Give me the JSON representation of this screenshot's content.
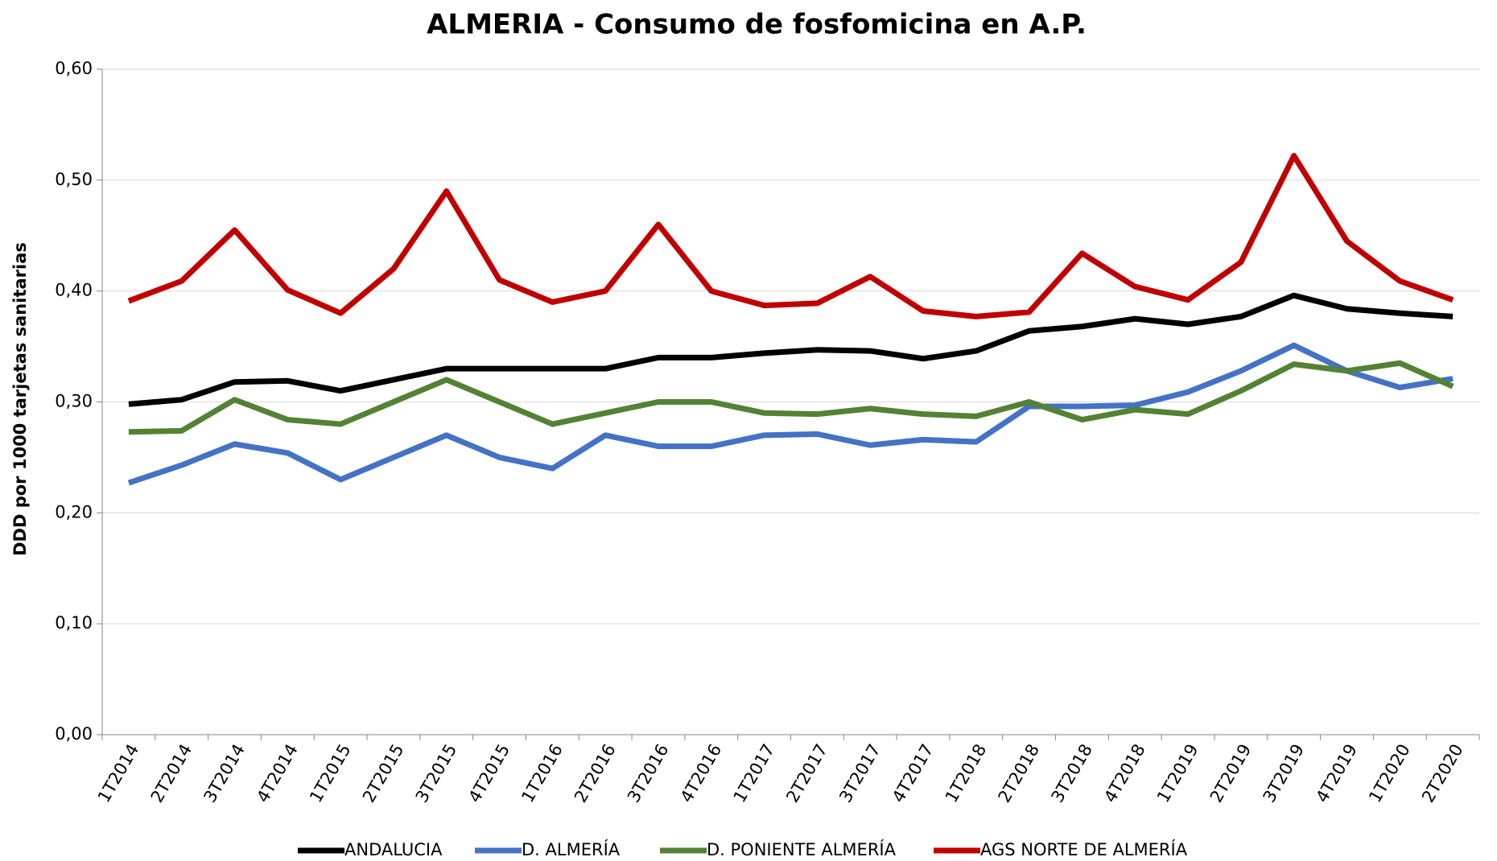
{
  "chart_data": {
    "type": "line",
    "title": "ALMERIA - Consumo de fosfomicina en A.P.",
    "y_label": "DDD por 1000 tarjetas sanitarias",
    "categories": [
      "1T2014",
      "2T2014",
      "3T2014",
      "4T2014",
      "1T2015",
      "2T2015",
      "3T2015",
      "4T2015",
      "1T2016",
      "2T2016",
      "3T2016",
      "4T2016",
      "1T2017",
      "2T2017",
      "3T2017",
      "4T2017",
      "1T2018",
      "2T2018",
      "3T2018",
      "4T2018",
      "1T2019",
      "2T2019",
      "3T2019",
      "4T2019",
      "1T2020",
      "2T2020"
    ],
    "series": [
      {
        "name": "ANDALUCIA",
        "color": "#000000",
        "values": [
          0.298,
          0.302,
          0.318,
          0.319,
          0.31,
          0.32,
          0.33,
          0.33,
          0.33,
          0.33,
          0.34,
          0.34,
          0.344,
          0.347,
          0.346,
          0.339,
          0.346,
          0.364,
          0.368,
          0.375,
          0.37,
          0.377,
          0.396,
          0.384,
          0.38,
          0.377
        ]
      },
      {
        "name": "D. ALMERÍA",
        "color": "#4472c4",
        "values": [
          0.227,
          0.243,
          0.262,
          0.254,
          0.23,
          0.25,
          0.27,
          0.25,
          0.24,
          0.27,
          0.26,
          0.26,
          0.27,
          0.271,
          0.261,
          0.266,
          0.264,
          0.296,
          0.296,
          0.297,
          0.309,
          0.328,
          0.351,
          0.328,
          0.313,
          0.321
        ]
      },
      {
        "name": "D. PONIENTE ALMERÍA",
        "color": "#548235",
        "values": [
          0.273,
          0.274,
          0.302,
          0.284,
          0.28,
          0.3,
          0.32,
          0.3,
          0.28,
          0.29,
          0.3,
          0.3,
          0.29,
          0.289,
          0.294,
          0.289,
          0.287,
          0.3,
          0.284,
          0.293,
          0.289,
          0.31,
          0.334,
          0.328,
          0.335,
          0.314
        ]
      },
      {
        "name": "AGS NORTE DE ALMERÍA",
        "color": "#c00000",
        "values": [
          0.391,
          0.409,
          0.455,
          0.401,
          0.38,
          0.42,
          0.49,
          0.41,
          0.39,
          0.4,
          0.46,
          0.4,
          0.387,
          0.389,
          0.413,
          0.382,
          0.377,
          0.381,
          0.434,
          0.404,
          0.392,
          0.426,
          0.522,
          0.445,
          0.409,
          0.392
        ]
      }
    ],
    "ylim": [
      0,
      0.6
    ],
    "yticks": [
      {
        "value": 0,
        "label": "0,00"
      },
      {
        "value": 0.1,
        "label": "0,10"
      },
      {
        "value": 0.2,
        "label": "0,20"
      },
      {
        "value": 0.3,
        "label": "0,30"
      },
      {
        "value": 0.4,
        "label": "0,40"
      },
      {
        "value": 0.5,
        "label": "0,50"
      },
      {
        "value": 0.6,
        "label": "0,60"
      }
    ],
    "grid": true,
    "legend": "bottom"
  }
}
